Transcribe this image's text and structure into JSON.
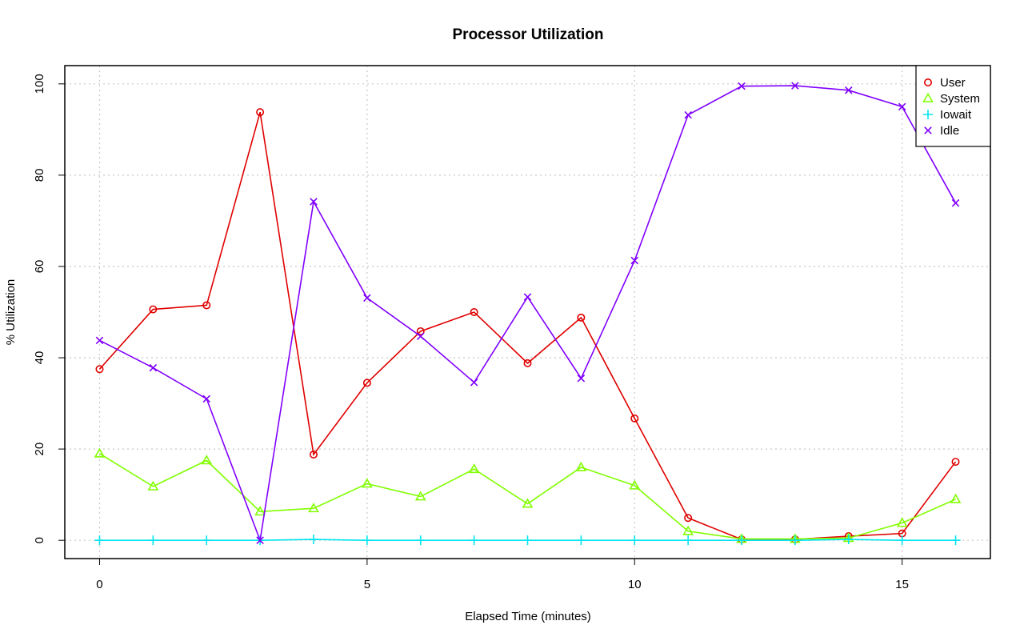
{
  "chart_data": {
    "type": "line",
    "title": "Processor Utilization",
    "xlabel": "Elapsed Time (minutes)",
    "ylabel": "% Utilization",
    "xlim": [
      -0.65,
      16.65
    ],
    "ylim": [
      -4,
      104
    ],
    "xticks": [
      0,
      5,
      10,
      15
    ],
    "yticks": [
      0,
      20,
      40,
      60,
      80,
      100
    ],
    "grid": true,
    "legend_position": "top-right",
    "x": [
      0,
      1,
      2,
      3,
      4,
      5,
      6,
      7,
      8,
      9,
      10,
      11,
      12,
      13,
      14,
      15,
      16
    ],
    "series": [
      {
        "name": "User",
        "color": "#e00000",
        "marker": "circle",
        "values": [
          37.5,
          50.6,
          51.5,
          93.8,
          18.8,
          34.5,
          45.8,
          50.0,
          38.8,
          48.8,
          26.7,
          4.9,
          0.2,
          0.2,
          0.9,
          1.5,
          17.2
        ]
      },
      {
        "name": "System",
        "color": "#80ff00",
        "marker": "triangle",
        "values": [
          19.0,
          11.8,
          17.5,
          6.3,
          7.0,
          12.4,
          9.6,
          15.6,
          8.0,
          16.0,
          12.0,
          2.0,
          0.3,
          0.3,
          0.5,
          3.8,
          9.0
        ]
      },
      {
        "name": "Iowait",
        "color": "#00e5ee",
        "marker": "plus",
        "values": [
          0.0,
          0.0,
          0.0,
          0.0,
          0.2,
          0.0,
          0.0,
          0.0,
          0.0,
          0.0,
          0.0,
          0.0,
          0.0,
          0.0,
          0.2,
          0.0,
          0.0
        ]
      },
      {
        "name": "Idle",
        "color": "#8000ff",
        "marker": "cross",
        "values": [
          43.8,
          37.8,
          31.0,
          0.0,
          74.2,
          53.1,
          44.7,
          34.6,
          53.3,
          35.5,
          61.3,
          93.2,
          99.5,
          99.6,
          98.6,
          95.0,
          73.9
        ]
      }
    ]
  }
}
